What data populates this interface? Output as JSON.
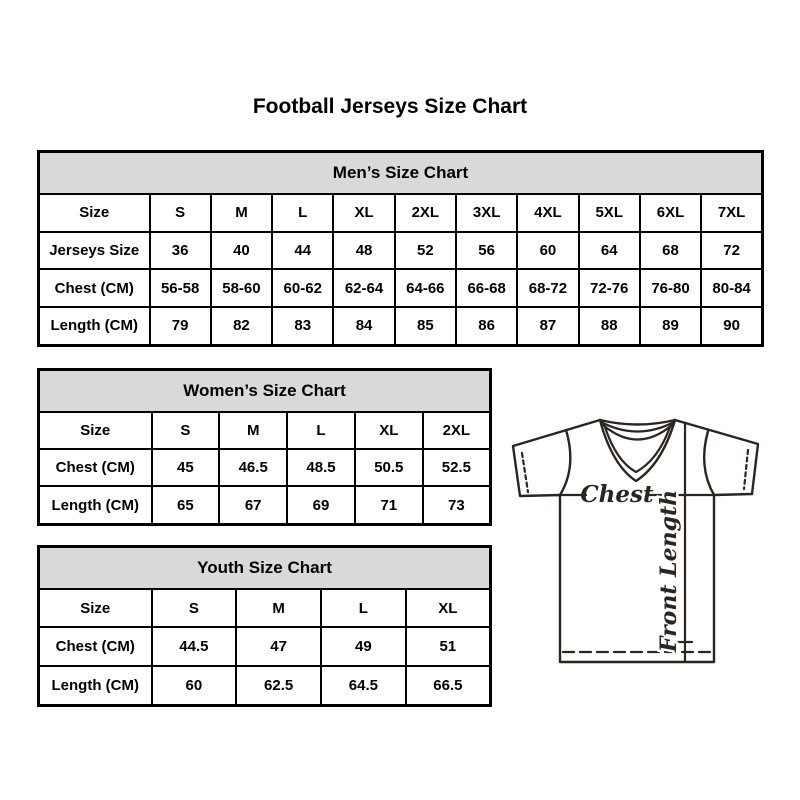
{
  "page": {
    "title": "Football Jerseys Size Chart"
  },
  "tables": {
    "mens": {
      "title": "Men’s Size Chart",
      "rows": [
        {
          "label": "Size",
          "values": [
            "S",
            "M",
            "L",
            "XL",
            "2XL",
            "3XL",
            "4XL",
            "5XL",
            "6XL",
            "7XL"
          ]
        },
        {
          "label": "Jerseys Size",
          "values": [
            "36",
            "40",
            "44",
            "48",
            "52",
            "56",
            "60",
            "64",
            "68",
            "72"
          ]
        },
        {
          "label": "Chest (CM)",
          "values": [
            "56-58",
            "58-60",
            "60-62",
            "62-64",
            "64-66",
            "66-68",
            "68-72",
            "72-76",
            "76-80",
            "80-84"
          ]
        },
        {
          "label": "Length (CM)",
          "values": [
            "79",
            "82",
            "83",
            "84",
            "85",
            "86",
            "87",
            "88",
            "89",
            "90"
          ]
        }
      ]
    },
    "womens": {
      "title": "Women’s Size Chart",
      "rows": [
        {
          "label": "Size",
          "values": [
            "S",
            "M",
            "L",
            "XL",
            "2XL"
          ]
        },
        {
          "label": "Chest (CM)",
          "values": [
            "45",
            "46.5",
            "48.5",
            "50.5",
            "52.5"
          ]
        },
        {
          "label": "Length (CM)",
          "values": [
            "65",
            "67",
            "69",
            "71",
            "73"
          ]
        }
      ]
    },
    "youth": {
      "title": "Youth Size Chart",
      "rows": [
        {
          "label": "Size",
          "values": [
            "S",
            "M",
            "L",
            "XL"
          ]
        },
        {
          "label": "Chest (CM)",
          "values": [
            "44.5",
            "47",
            "49",
            "51"
          ]
        },
        {
          "label": "Length (CM)",
          "values": [
            "60",
            "62.5",
            "64.5",
            "66.5"
          ]
        }
      ]
    }
  },
  "diagram": {
    "chest_label": "Chest",
    "front_length_label": "Front Length"
  },
  "colors": {
    "header_bg": "#d9d9d9",
    "table_border": "#000000",
    "text": "#000000",
    "diagram_stroke": "#2b241f"
  }
}
